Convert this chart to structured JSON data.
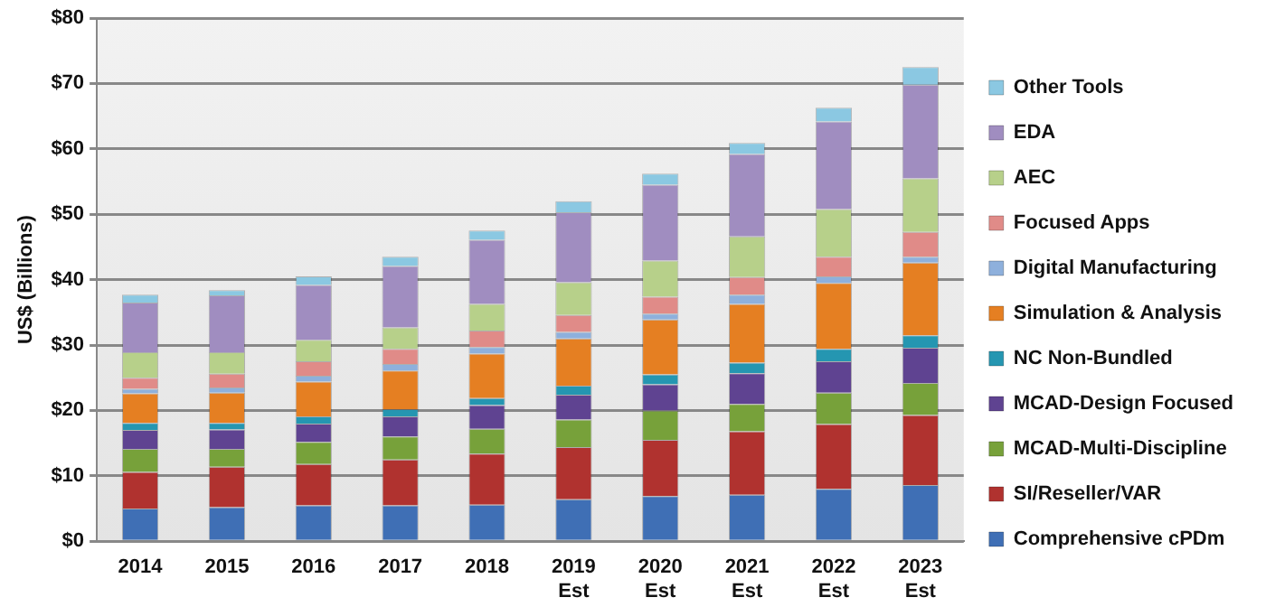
{
  "chart_data": {
    "type": "bar",
    "stacked": true,
    "ylabel": "US$ (Billions)",
    "categories": [
      "2014",
      "2015",
      "2016",
      "2017",
      "2018",
      "2019\nEst",
      "2020\nEst",
      "2021\nEst",
      "2022\nEst",
      "2023\nEst"
    ],
    "series": [
      {
        "name": "Comprehensive cPDm",
        "color": "#3f6fb5",
        "values": [
          5.0,
          5.2,
          5.5,
          5.5,
          5.6,
          6.4,
          6.9,
          7.1,
          8.0,
          8.6
        ]
      },
      {
        "name": "SI/Reseller/VAR",
        "color": "#b0322f",
        "values": [
          5.6,
          6.2,
          6.3,
          7.0,
          7.8,
          8.0,
          8.6,
          9.7,
          9.9,
          10.7
        ]
      },
      {
        "name": "MCAD-Multi-Discipline",
        "color": "#77a13a",
        "values": [
          3.5,
          2.7,
          3.4,
          3.5,
          3.8,
          4.2,
          4.5,
          4.2,
          4.8,
          4.9
        ]
      },
      {
        "name": "MCAD-Design Focused",
        "color": "#5f4391",
        "values": [
          2.9,
          3.0,
          2.8,
          3.1,
          3.6,
          3.8,
          4.0,
          4.7,
          4.8,
          5.4
        ]
      },
      {
        "name": "NC Non-Bundled",
        "color": "#2596b1",
        "values": [
          1.1,
          1.0,
          1.1,
          1.1,
          1.1,
          1.4,
          1.5,
          1.6,
          1.9,
          1.9
        ]
      },
      {
        "name": "Simulation & Analysis",
        "color": "#e57f22",
        "values": [
          4.5,
          4.6,
          5.3,
          5.9,
          6.8,
          7.2,
          8.4,
          9.0,
          10.1,
          11.1
        ]
      },
      {
        "name": "Digital Manufacturing",
        "color": "#8eb0dc",
        "values": [
          0.7,
          0.8,
          0.9,
          1.0,
          1.0,
          1.0,
          0.9,
          1.4,
          1.0,
          0.9
        ]
      },
      {
        "name": "Focused Apps",
        "color": "#e08b88",
        "values": [
          1.7,
          2.1,
          2.2,
          2.3,
          2.5,
          2.6,
          2.6,
          2.7,
          3.0,
          3.8
        ]
      },
      {
        "name": "AEC",
        "color": "#b7d08a",
        "values": [
          3.9,
          3.3,
          3.3,
          3.3,
          4.1,
          5.0,
          5.5,
          6.2,
          7.3,
          8.2
        ]
      },
      {
        "name": "EDA",
        "color": "#a08dc0",
        "values": [
          7.6,
          8.7,
          8.4,
          9.4,
          9.8,
          10.7,
          11.6,
          12.6,
          13.4,
          14.3
        ]
      },
      {
        "name": "Other Tools",
        "color": "#8bc8e2",
        "values": [
          1.2,
          0.8,
          1.3,
          1.4,
          1.4,
          1.7,
          1.7,
          1.7,
          2.1,
          2.7
        ]
      }
    ],
    "ylim": [
      0,
      80
    ],
    "yticks": [
      {
        "value": 0,
        "label": "$0"
      },
      {
        "value": 10,
        "label": "$10"
      },
      {
        "value": 20,
        "label": "$20"
      },
      {
        "value": 30,
        "label": "$30"
      },
      {
        "value": 40,
        "label": "$40"
      },
      {
        "value": 50,
        "label": "$50"
      },
      {
        "value": 60,
        "label": "$60"
      },
      {
        "value": 70,
        "label": "$70"
      },
      {
        "value": 80,
        "label": "$80"
      }
    ],
    "grid": "y",
    "legend": "right"
  }
}
